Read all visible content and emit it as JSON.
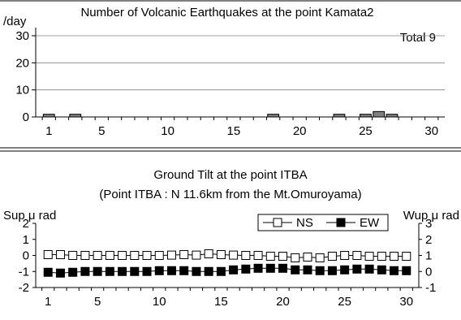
{
  "chart_data": [
    {
      "type": "bar",
      "title": "Number of Volcanic Earthquakes at the point Kamata2",
      "ylabel": "/day",
      "annotation": "Total  9",
      "x_ticks": [
        "1",
        "5",
        "10",
        "15",
        "20",
        "25",
        "30"
      ],
      "y_ticks": [
        "0",
        "10",
        "20",
        "30"
      ],
      "xlim": [
        0,
        31
      ],
      "ylim": [
        0,
        33
      ],
      "categories": [
        1,
        2,
        3,
        4,
        5,
        6,
        7,
        8,
        9,
        10,
        11,
        12,
        13,
        14,
        15,
        16,
        17,
        18,
        19,
        20,
        21,
        22,
        23,
        24,
        25,
        26,
        27,
        28,
        29,
        30
      ],
      "values": [
        1,
        0,
        1,
        0,
        0,
        0,
        0,
        0,
        0,
        0,
        0,
        0,
        0,
        0,
        0,
        0,
        0,
        1,
        0,
        0,
        0,
        0,
        1,
        0,
        1,
        2,
        1,
        0,
        0,
        0
      ],
      "grid": true,
      "color": "#7f7f7f"
    },
    {
      "type": "line",
      "title_lines": [
        "Ground Tilt at the point ITBA",
        "(Point ITBA : N 11.6km from the Mt.Omuroyama)"
      ],
      "ylabel_left": "Sup μ rad",
      "ylabel_right": "Wup μ rad",
      "x_ticks": [
        "1",
        "5",
        "10",
        "15",
        "20",
        "25",
        "30"
      ],
      "y_ticks_left": [
        "-2",
        "-1",
        "0",
        "1",
        "2"
      ],
      "y_ticks_right": [
        "-1",
        "0",
        "1",
        "2",
        "3"
      ],
      "xlim": [
        0,
        31
      ],
      "ylim_left": [
        -2,
        2
      ],
      "ylim_right": [
        -1,
        3
      ],
      "legend_position": "top-right",
      "x": [
        1,
        2,
        3,
        4,
        5,
        6,
        7,
        8,
        9,
        10,
        11,
        12,
        13,
        14,
        15,
        16,
        17,
        18,
        19,
        20,
        21,
        22,
        23,
        24,
        25,
        26,
        27,
        28,
        29,
        30
      ],
      "series": [
        {
          "name": "NS",
          "axis": "left",
          "marker": "open-square",
          "values": [
            0.05,
            0.05,
            0.0,
            0.0,
            0.0,
            0.0,
            0.0,
            0.0,
            0.0,
            0.0,
            0.02,
            0.05,
            0.02,
            0.1,
            0.05,
            0.02,
            0.0,
            0.0,
            -0.05,
            -0.05,
            -0.15,
            -0.1,
            -0.15,
            -0.05,
            0.0,
            0.0,
            -0.05,
            -0.05,
            -0.05,
            -0.05
          ]
        },
        {
          "name": "EW",
          "axis": "right",
          "marker": "filled-square",
          "values": [
            -0.05,
            -0.1,
            -0.05,
            0.0,
            0.0,
            0.0,
            0.0,
            0.0,
            0.0,
            0.05,
            0.05,
            0.05,
            0.0,
            0.0,
            0.0,
            0.1,
            0.15,
            0.2,
            0.2,
            0.2,
            0.1,
            0.1,
            0.05,
            0.05,
            0.1,
            0.15,
            0.15,
            0.1,
            0.05,
            0.05
          ]
        }
      ]
    }
  ]
}
